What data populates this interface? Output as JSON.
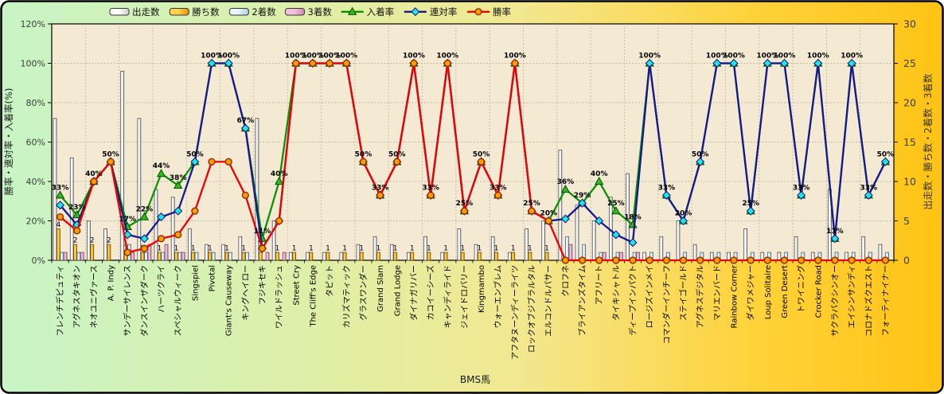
{
  "chart_data": {
    "type": "bar+line-combo",
    "title": "",
    "axes": {
      "left": {
        "title": "勝率・連対率・入着率(%)",
        "min": 0,
        "max": 120,
        "tick_step": 20,
        "ticks": [
          "0%",
          "20%",
          "40%",
          "60%",
          "80%",
          "100%",
          "120%"
        ]
      },
      "right": {
        "title": "出走数・勝ち数・2着数・3着数",
        "min": 0,
        "max": 30,
        "tick_step": 5,
        "ticks": [
          "0",
          "5",
          "10",
          "15",
          "20",
          "25",
          "30"
        ]
      },
      "x": {
        "title": "BMS馬"
      }
    },
    "grid": {
      "horizontal": true,
      "vertical_every_2_categories": true
    },
    "categories": [
      "フレンチデピュティ",
      "アグネスタキオン",
      "ネオユニヴァース",
      "A. P. Indy",
      "サンデーサイレンス",
      "ダンスインザダーク",
      "ハーツクライ",
      "スペシャルウィーク",
      "Singspiel",
      "Pivotal",
      "Giant's Causeway",
      "キングヘイロー",
      "フジキセキ",
      "ワイルドラッシュ",
      "Street Cry",
      "The Cliff's Edge",
      "タピット",
      "カリズマティック",
      "グラスワンダー",
      "Grand Slam",
      "Grand Lodge",
      "ダイナガリバー",
      "カコイーシーズ",
      "キャンディライド",
      "ジェイドロバリー",
      "Kingmambo",
      "ウォーエンブレム",
      "アフタヌーンディーライツ",
      "ロックオブジブラルタル",
      "エルコンドルパサー",
      "クロフネ",
      "ブライアンズタイム",
      "アフリート",
      "タイキシャトル",
      "ディープインパクト",
      "ロージズインメイ",
      "コマンダーインチーフ",
      "ステイゴールド",
      "アグネスデジタル",
      "マリエンバード",
      "Rainbow Corner",
      "ダイワメジャー",
      "Loup Solitaire",
      "Green Desert",
      "トワイニング",
      "Crocker Road",
      "サクラバクシンオー",
      "エイシンサンディ",
      "コロナドズクエスト",
      "フォーティナイナー"
    ],
    "bar_series": [
      {
        "name": "出走数",
        "key": "starts",
        "fill_light": "#ffffff",
        "fill_dark": "#cfcfcf",
        "stroke": "#4a4a4a",
        "values": [
          18,
          13,
          5,
          4,
          24,
          18,
          9,
          8,
          4,
          2,
          2,
          3,
          18,
          5,
          1,
          1,
          1,
          1,
          2,
          3,
          2,
          1,
          3,
          1,
          4,
          2,
          3,
          1,
          4,
          5,
          14,
          7,
          5,
          8,
          11,
          1,
          3,
          5,
          2,
          1,
          1,
          4,
          1,
          1,
          3,
          1,
          9,
          1,
          3,
          2
        ]
      },
      {
        "name": "勝ち数",
        "key": "wins",
        "fill_light": "#ffd24d",
        "fill_dark": "#e89400",
        "stroke": "#6b4a00",
        "values": [
          4,
          2,
          2,
          2,
          1,
          1,
          1,
          1,
          1,
          1,
          1,
          1,
          1,
          1,
          1,
          1,
          1,
          1,
          1,
          1,
          1,
          1,
          1,
          1,
          1,
          1,
          1,
          1,
          1,
          1,
          0,
          0,
          0,
          0,
          0,
          0,
          0,
          0,
          0,
          0,
          0,
          0,
          0,
          0,
          0,
          0,
          0,
          0,
          0,
          0
        ]
      },
      {
        "name": "2着数",
        "key": "second",
        "fill_light": "#eaf6fb",
        "fill_dark": "#a9cfdf",
        "stroke": "#45616e",
        "values": [
          1,
          1,
          0,
          0,
          2,
          1,
          1,
          1,
          1,
          1,
          1,
          1,
          0,
          0,
          0,
          0,
          0,
          0,
          0,
          0,
          0,
          0,
          0,
          0,
          0,
          0,
          0,
          0,
          0,
          0,
          3,
          2,
          1,
          1,
          1,
          1,
          1,
          1,
          1,
          1,
          1,
          1,
          1,
          1,
          1,
          1,
          1,
          1,
          1,
          1
        ]
      },
      {
        "name": "3着数",
        "key": "third",
        "fill_light": "#f6c3de",
        "fill_dark": "#d385b3",
        "stroke": "#6e4559",
        "values": [
          1,
          1,
          0,
          0,
          1,
          2,
          2,
          1,
          0,
          0,
          0,
          0,
          1,
          1,
          0,
          0,
          0,
          0,
          0,
          0,
          0,
          0,
          0,
          0,
          0,
          0,
          0,
          0,
          0,
          0,
          2,
          0,
          1,
          1,
          1,
          0,
          0,
          0,
          0,
          0,
          0,
          0,
          0,
          0,
          0,
          0,
          0,
          0,
          0,
          0
        ]
      }
    ],
    "line_series": [
      {
        "name": "入着率",
        "key": "place-rate",
        "color": "#0a9104",
        "marker": "triangle",
        "marker_fill": "#2fbc1a",
        "marker_stroke": "#064d05",
        "values": [
          33,
          23,
          40,
          50,
          17,
          22,
          44,
          38,
          50,
          100,
          100,
          67,
          11,
          40,
          100,
          100,
          100,
          100,
          50,
          33,
          50,
          100,
          33,
          100,
          25,
          50,
          33,
          100,
          25,
          20,
          36,
          29,
          40,
          25,
          18,
          100,
          33,
          20,
          50,
          100,
          100,
          25,
          100,
          100,
          33,
          100,
          11,
          100,
          33,
          50
        ]
      },
      {
        "name": "連対率",
        "key": "quinella-rate",
        "color": "#17178f",
        "marker": "diamond",
        "marker_fill": "#1ee6e6",
        "marker_stroke": "#10106f",
        "values": [
          28,
          18,
          40,
          50,
          13,
          11,
          22,
          25,
          50,
          100,
          100,
          67,
          6,
          20,
          100,
          100,
          100,
          100,
          50,
          33,
          50,
          100,
          33,
          100,
          25,
          50,
          33,
          100,
          25,
          20,
          21,
          29,
          20,
          13,
          9,
          100,
          33,
          20,
          50,
          100,
          100,
          25,
          100,
          100,
          33,
          100,
          11,
          100,
          33,
          50
        ]
      },
      {
        "name": "勝率",
        "key": "win-rate",
        "color": "#ee0000",
        "marker": "circle",
        "marker_fill": "#ff9d00",
        "marker_stroke": "#8f2a00",
        "values": [
          22,
          15,
          40,
          50,
          4,
          6,
          11,
          13,
          25,
          50,
          50,
          33,
          6,
          20,
          100,
          100,
          100,
          100,
          50,
          33,
          50,
          100,
          33,
          100,
          25,
          50,
          33,
          100,
          25,
          20,
          0,
          0,
          0,
          0,
          0,
          0,
          0,
          0,
          0,
          0,
          0,
          0,
          0,
          0,
          0,
          0,
          0,
          0,
          0,
          0
        ]
      }
    ],
    "point_labels": [
      "33%",
      "23%",
      "40%",
      "50%",
      "17%",
      "22%",
      "44%",
      "38%",
      "50%",
      "100%",
      "100%",
      "67%",
      "11%",
      "40%",
      "100%",
      "100%",
      "100%",
      "100%",
      "50%",
      "33%",
      "50%",
      "100%",
      "33%",
      "100%",
      "25%",
      "50%",
      "33%",
      "100%",
      "25%",
      "20%",
      "36%",
      "29%",
      "40%",
      "25%",
      "18%",
      "100%",
      "33%",
      "20%",
      "50%",
      "100%",
      "100%",
      "25%",
      "100%",
      "100%",
      "33%",
      "100%",
      "11%",
      "100%",
      "33%",
      "50%"
    ],
    "legend": [
      {
        "label": "出走数",
        "type": "bar",
        "series": 0
      },
      {
        "label": "勝ち数",
        "type": "bar",
        "series": 1
      },
      {
        "label": "2着数",
        "type": "bar",
        "series": 2
      },
      {
        "label": "3着数",
        "type": "bar",
        "series": 3
      },
      {
        "label": "入着率",
        "type": "line",
        "series": 0
      },
      {
        "label": "連対率",
        "type": "line",
        "series": 1
      },
      {
        "label": "勝率",
        "type": "line",
        "series": 2
      }
    ],
    "colors": {
      "bg_gradient": [
        "#c8f4c6",
        "#dcf0aa",
        "#f2e890",
        "#ffd23a",
        "#ffc314"
      ],
      "plot_bg": "#f4ead4",
      "grid": "#a39a84",
      "axis": "#000000",
      "tick_text": "#3d3d3d",
      "label_text": "#000000",
      "frame_border": "#000000"
    }
  }
}
